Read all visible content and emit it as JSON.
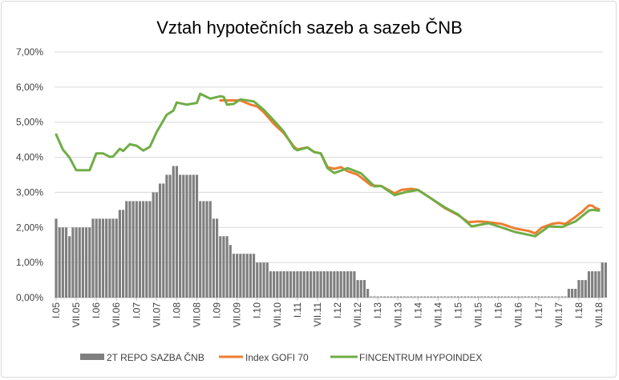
{
  "chart_data": {
    "type": "bar+line",
    "title": "Vztah hypotečních sazeb a sazeb ČNB",
    "xlabel": "",
    "ylabel": "",
    "ylim": [
      0,
      7
    ],
    "y_ticks": [
      "0,00%",
      "1,00%",
      "2,00%",
      "3,00%",
      "4,00%",
      "5,00%",
      "6,00%",
      "7,00%"
    ],
    "x_range": [
      "2005-01",
      "2018-07"
    ],
    "x_ticks": [
      "I.05",
      "VII.05",
      "I.06",
      "VII.06",
      "I.07",
      "VII.07",
      "I.08",
      "VII.08",
      "I.09",
      "VII.09",
      "I.10",
      "VII.10",
      "I.11",
      "VII.11",
      "I.12",
      "VII.12",
      "I.13",
      "VII.13",
      "I.14",
      "VII.14",
      "I.15",
      "VII.15",
      "I.16",
      "VII.16",
      "I.17",
      "VII.17",
      "I.18",
      "VII.18"
    ],
    "grid": "horizontal",
    "legend_position": "bottom",
    "colors": {
      "repo": "#7f7f7f",
      "gofi": "#ed7d31",
      "fincentrum": "#70ad47",
      "grid": "#d9d9d9"
    },
    "series": [
      {
        "name": "2T REPO SAZBA ČNB",
        "type": "bar",
        "monthly_from": "2005-01",
        "values": [
          2.25,
          2,
          2,
          2,
          1.75,
          2,
          2,
          2,
          2,
          2,
          2,
          2.25,
          2.25,
          2.25,
          2.25,
          2.25,
          2.25,
          2.25,
          2.25,
          2.5,
          2.5,
          2.75,
          2.75,
          2.75,
          2.75,
          2.75,
          2.75,
          2.75,
          2.75,
          3,
          3,
          3.25,
          3.25,
          3.5,
          3.5,
          3.75,
          3.75,
          3.5,
          3.5,
          3.5,
          3.5,
          3.5,
          3.5,
          2.75,
          2.75,
          2.75,
          2.75,
          2.25,
          2.25,
          1.75,
          1.75,
          1.75,
          1.5,
          1.25,
          1.25,
          1.25,
          1.25,
          1.25,
          1.25,
          1.25,
          1,
          1,
          1,
          1,
          0.75,
          0.75,
          0.75,
          0.75,
          0.75,
          0.75,
          0.75,
          0.75,
          0.75,
          0.75,
          0.75,
          0.75,
          0.75,
          0.75,
          0.75,
          0.75,
          0.75,
          0.75,
          0.75,
          0.75,
          0.75,
          0.75,
          0.75,
          0.75,
          0.75,
          0.75,
          0.5,
          0.5,
          0.5,
          0.25,
          0.05,
          0.05,
          0.05,
          0.05,
          0.05,
          0.05,
          0.05,
          0.05,
          0.05,
          0.05,
          0.05,
          0.05,
          0.05,
          0.05,
          0.05,
          0.05,
          0.05,
          0.05,
          0.05,
          0.05,
          0.05,
          0.05,
          0.05,
          0.05,
          0.05,
          0.05,
          0.05,
          0.05,
          0.05,
          0.05,
          0.05,
          0.05,
          0.05,
          0.05,
          0.05,
          0.05,
          0.05,
          0.05,
          0.05,
          0.05,
          0.05,
          0.05,
          0.05,
          0.05,
          0.05,
          0.05,
          0.05,
          0.05,
          0.05,
          0.05,
          0.05,
          0.05,
          0.05,
          0.05,
          0.05,
          0.05,
          0.05,
          0.05,
          0.05,
          0.25,
          0.25,
          0.25,
          0.5,
          0.5,
          0.5,
          0.75,
          0.75,
          0.75,
          0.75,
          1,
          1
        ]
      },
      {
        "name": "Index GOFI 70",
        "type": "line",
        "points": [
          [
            "2009-02",
            5.62
          ],
          [
            "2009-05",
            5.62
          ],
          [
            "2009-08",
            5.62
          ],
          [
            "2009-11",
            5.5
          ],
          [
            "2010-01",
            5.45
          ],
          [
            "2010-03",
            5.28
          ],
          [
            "2010-06",
            4.95
          ],
          [
            "2010-09",
            4.68
          ],
          [
            "2010-12",
            4.3
          ],
          [
            "2011-01",
            4.22
          ],
          [
            "2011-04",
            4.28
          ],
          [
            "2011-06",
            4.15
          ],
          [
            "2011-08",
            4.11
          ],
          [
            "2011-10",
            3.72
          ],
          [
            "2011-12",
            3.67
          ],
          [
            "2012-02",
            3.72
          ],
          [
            "2012-04",
            3.6
          ],
          [
            "2012-07",
            3.5
          ],
          [
            "2012-11",
            3.2
          ],
          [
            "2013-02",
            3.18
          ],
          [
            "2013-06",
            2.97
          ],
          [
            "2013-08",
            3.07
          ],
          [
            "2013-11",
            3.1
          ],
          [
            "2014-01",
            3.07
          ],
          [
            "2014-05",
            2.82
          ],
          [
            "2014-09",
            2.55
          ],
          [
            "2015-01",
            2.35
          ],
          [
            "2015-04",
            2.15
          ],
          [
            "2015-07",
            2.17
          ],
          [
            "2015-10",
            2.15
          ],
          [
            "2016-02",
            2.1
          ],
          [
            "2016-06",
            1.97
          ],
          [
            "2016-10",
            1.9
          ],
          [
            "2016-12",
            1.83
          ],
          [
            "2017-02",
            2.0
          ],
          [
            "2017-05",
            2.1
          ],
          [
            "2017-07",
            2.13
          ],
          [
            "2017-09",
            2.1
          ],
          [
            "2017-12",
            2.3
          ],
          [
            "2018-02",
            2.45
          ],
          [
            "2018-04",
            2.63
          ],
          [
            "2018-05",
            2.62
          ],
          [
            "2018-06",
            2.55
          ],
          [
            "2018-07",
            2.52
          ]
        ]
      },
      {
        "name": "FINCENTRUM HYPOINDEX",
        "type": "line",
        "points": [
          [
            "2005-01",
            4.65
          ],
          [
            "2005-03",
            4.22
          ],
          [
            "2005-05",
            3.99
          ],
          [
            "2005-07",
            3.63
          ],
          [
            "2005-11",
            3.63
          ],
          [
            "2006-01",
            4.11
          ],
          [
            "2006-03",
            4.11
          ],
          [
            "2006-05",
            4.01
          ],
          [
            "2006-06",
            4.02
          ],
          [
            "2006-08",
            4.24
          ],
          [
            "2006-09",
            4.18
          ],
          [
            "2006-11",
            4.37
          ],
          [
            "2007-01",
            4.33
          ],
          [
            "2007-03",
            4.19
          ],
          [
            "2007-05",
            4.3
          ],
          [
            "2007-07",
            4.72
          ],
          [
            "2007-10",
            5.21
          ],
          [
            "2007-12",
            5.33
          ],
          [
            "2008-01",
            5.56
          ],
          [
            "2008-04",
            5.5
          ],
          [
            "2008-07",
            5.55
          ],
          [
            "2008-08",
            5.81
          ],
          [
            "2008-11",
            5.67
          ],
          [
            "2009-02",
            5.74
          ],
          [
            "2009-03",
            5.72
          ],
          [
            "2009-04",
            5.5
          ],
          [
            "2009-06",
            5.52
          ],
          [
            "2009-08",
            5.65
          ],
          [
            "2009-12",
            5.59
          ],
          [
            "2010-03",
            5.35
          ],
          [
            "2010-07",
            4.94
          ],
          [
            "2010-09",
            4.72
          ],
          [
            "2010-12",
            4.26
          ],
          [
            "2011-01",
            4.2
          ],
          [
            "2011-04",
            4.28
          ],
          [
            "2011-06",
            4.15
          ],
          [
            "2011-08",
            4.11
          ],
          [
            "2011-10",
            3.69
          ],
          [
            "2011-12",
            3.55
          ],
          [
            "2012-04",
            3.69
          ],
          [
            "2012-08",
            3.54
          ],
          [
            "2012-12",
            3.17
          ],
          [
            "2013-02",
            3.18
          ],
          [
            "2013-06",
            2.92
          ],
          [
            "2013-09",
            3.0
          ],
          [
            "2014-01",
            3.07
          ],
          [
            "2014-05",
            2.82
          ],
          [
            "2014-09",
            2.57
          ],
          [
            "2015-01",
            2.37
          ],
          [
            "2015-05",
            2.03
          ],
          [
            "2015-10",
            2.12
          ],
          [
            "2016-01",
            2.03
          ],
          [
            "2016-06",
            1.87
          ],
          [
            "2016-12",
            1.75
          ],
          [
            "2017-04",
            2.03
          ],
          [
            "2017-08",
            2.01
          ],
          [
            "2017-12",
            2.17
          ],
          [
            "2018-04",
            2.48
          ],
          [
            "2018-05",
            2.5
          ],
          [
            "2018-07",
            2.48
          ]
        ]
      }
    ]
  }
}
